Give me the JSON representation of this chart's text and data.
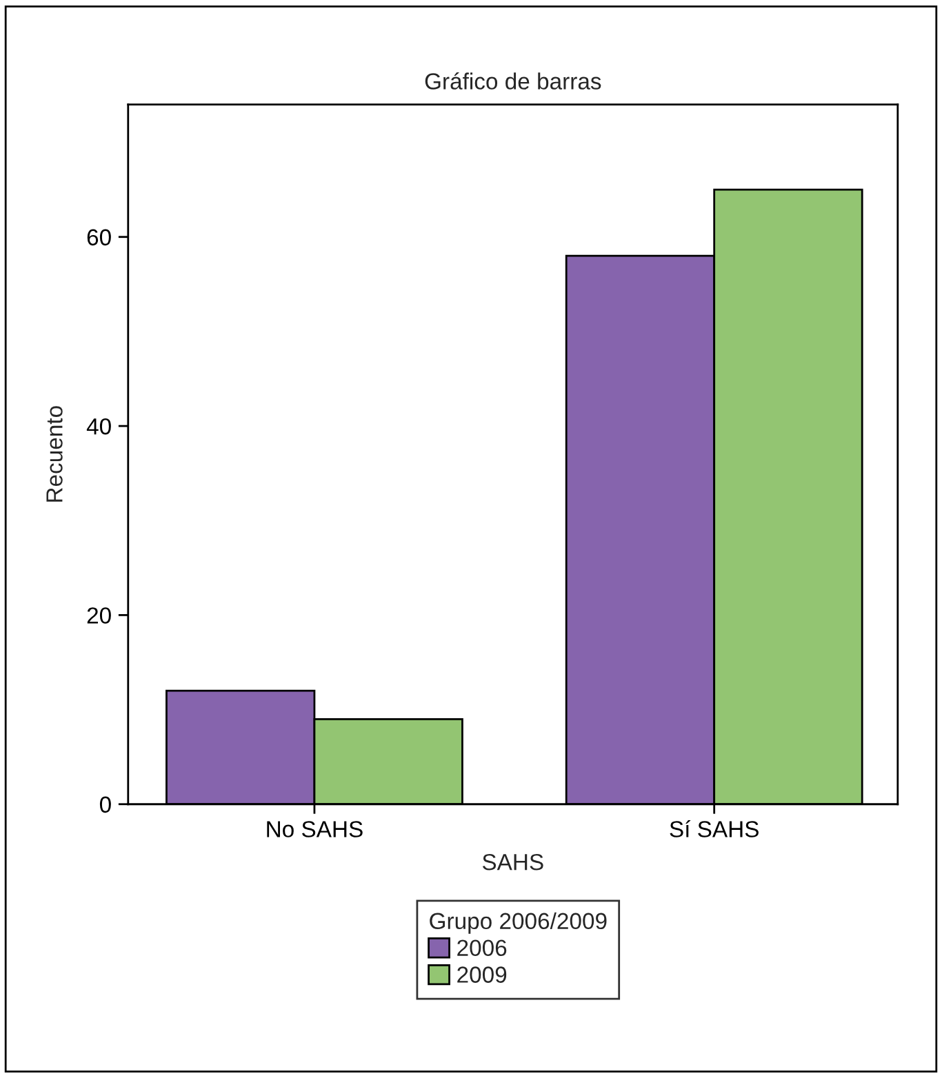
{
  "chart_data": {
    "type": "bar",
    "title": "Gráfico de barras",
    "xlabel": "SAHS",
    "ylabel": "Recuento",
    "legend_title": "Grupo 2006/2009",
    "categories": [
      "No SAHS",
      "Sí SAHS"
    ],
    "series": [
      {
        "name": "2006",
        "color": "#8664ad",
        "values": [
          12,
          58
        ]
      },
      {
        "name": "2009",
        "color": "#93c572",
        "values": [
          9,
          65
        ]
      }
    ],
    "ylim": [
      0,
      74
    ],
    "yticks": [
      0,
      20,
      40,
      60
    ],
    "grid": false,
    "legend": "bottom"
  }
}
